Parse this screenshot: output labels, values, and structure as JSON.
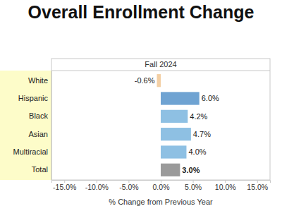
{
  "chart_data": {
    "type": "bar",
    "orientation": "horizontal",
    "title": "Overall Enrollment Change",
    "subtitle": "Fall 2024",
    "xlabel": "% Change from Previous Year",
    "categories": [
      "White",
      "Hispanic",
      "Black",
      "Asian",
      "Multiracial",
      "Total"
    ],
    "values": [
      -0.6,
      6.0,
      4.2,
      4.7,
      4.0,
      3.0
    ],
    "value_labels": [
      "-0.6%",
      "6.0%",
      "4.2%",
      "4.7%",
      "4.0%",
      "3.0%"
    ],
    "colors": [
      "#f3cfa4",
      "#6fa3d2",
      "#8ec0e3",
      "#8ec0e3",
      "#8ec0e3",
      "#9a9a9a"
    ],
    "data_labels": true,
    "grid": false,
    "xlim": [
      -17,
      17
    ],
    "xticks": [
      {
        "value": -15,
        "label": "-15.0%"
      },
      {
        "value": -10,
        "label": "-10.0%"
      },
      {
        "value": -5,
        "label": "-5.0%"
      },
      {
        "value": 0,
        "label": "0.0%"
      },
      {
        "value": 5,
        "label": "5.0%"
      },
      {
        "value": 10,
        "label": "10.0%"
      },
      {
        "value": 15,
        "label": "15.0%"
      }
    ]
  }
}
